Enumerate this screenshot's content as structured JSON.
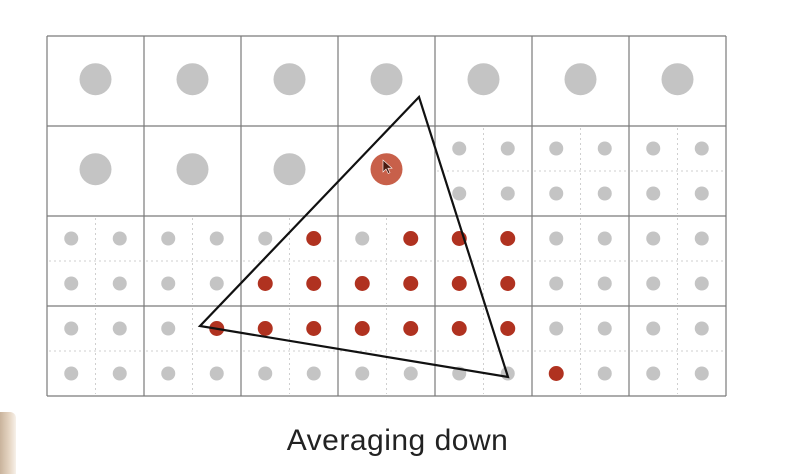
{
  "caption": "Averaging down",
  "grid": {
    "cols": 7,
    "rows": 4,
    "supersampled_cells": [
      [
        1,
        4
      ],
      [
        1,
        5
      ],
      [
        1,
        6
      ],
      [
        2,
        0
      ],
      [
        2,
        1
      ],
      [
        2,
        2
      ],
      [
        2,
        3
      ],
      [
        2,
        4
      ],
      [
        2,
        5
      ],
      [
        2,
        6
      ],
      [
        3,
        0
      ],
      [
        3,
        1
      ],
      [
        3,
        2
      ],
      [
        3,
        3
      ],
      [
        3,
        4
      ],
      [
        3,
        5
      ],
      [
        3,
        6
      ]
    ],
    "covered_cells": [
      [
        1,
        3
      ]
    ],
    "covered_samples": [
      [
        4,
        5
      ],
      [
        4,
        7
      ],
      [
        4,
        8
      ],
      [
        4,
        9
      ],
      [
        5,
        4
      ],
      [
        5,
        5
      ],
      [
        5,
        6
      ],
      [
        5,
        7
      ],
      [
        5,
        8
      ],
      [
        5,
        9
      ],
      [
        6,
        3
      ],
      [
        6,
        4
      ],
      [
        6,
        5
      ],
      [
        6,
        6
      ],
      [
        6,
        7
      ],
      [
        6,
        8
      ],
      [
        6,
        9
      ],
      [
        7,
        10
      ]
    ]
  },
  "colors": {
    "sample_gray": "#c4c4c4",
    "sample_red": "#b03220",
    "averaged_red": "#c8604a",
    "grid_line": "#7a7a7a",
    "sub_grid_line": "#cfcfcf",
    "triangle_stroke": "#111111"
  },
  "icons": {
    "cursor": "arrow-cursor-icon"
  }
}
